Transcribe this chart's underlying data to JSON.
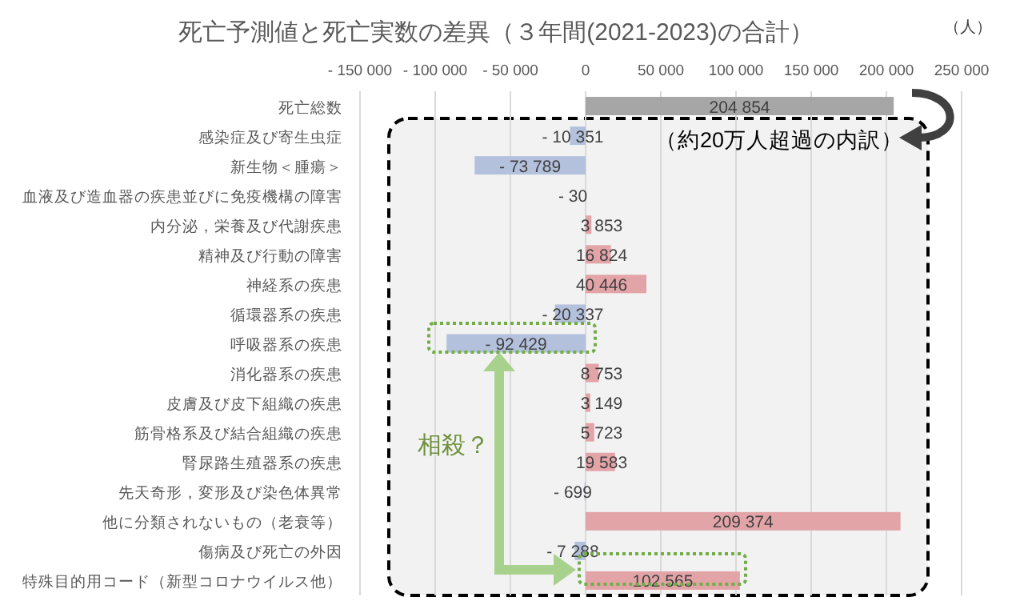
{
  "chart_data": {
    "type": "bar",
    "orientation": "horizontal",
    "title": "死亡予測値と死亡実数の差異（３年間(2021-2023)の合計）",
    "categories": [
      "死亡総数",
      "感染症及び寄生虫症",
      "新生物＜腫瘍＞",
      "血液及び造血器の疾患並びに免疫機構の障害",
      "内分泌，栄養及び代謝疾患",
      "精神及び行動の障害",
      "神経系の疾患",
      "循環器系の疾患",
      "呼吸器系の疾患",
      "消化器系の疾患",
      "皮膚及び皮下組織の疾患",
      "筋骨格系及び結合組織の疾患",
      "腎尿路生殖器系の疾患",
      "先天奇形，変形及び染色体異常",
      "他に分類されないもの（老衰等）",
      "傷病及び死亡の外因",
      "特殊目的用コード（新型コロナウイルス他）"
    ],
    "values": [
      204854,
      -10351,
      -73789,
      -30,
      3853,
      16824,
      40446,
      -20337,
      -92429,
      8753,
      3149,
      5723,
      19583,
      -699,
      209374,
      -7288,
      102565
    ],
    "value_labels": [
      "204 854",
      "- 10 351",
      "- 73 789",
      "-  30",
      "3 853",
      "16 824",
      "40 446",
      "- 20 337",
      "- 92 429",
      "8 753",
      "3 149",
      "5 723",
      "19 583",
      "-  699",
      "209 374",
      "- 7 288",
      "102 565"
    ],
    "colors": [
      "#a6a6a6",
      "#b4c1dd",
      "#b4c1dd",
      "#b4c1dd",
      "#e3a4a8",
      "#e3a4a8",
      "#e3a4a8",
      "#b4c1dd",
      "#b4c1dd",
      "#e3a4a8",
      "#e3a4a8",
      "#e3a4a8",
      "#e3a4a8",
      "#b4c1dd",
      "#e3a4a8",
      "#b4c1dd",
      "#e3a4a8"
    ],
    "xlim": [
      -150000,
      250000
    ],
    "xticks": [
      {
        "value": -150000,
        "label": "- 150 000"
      },
      {
        "value": -100000,
        "label": "- 100 000"
      },
      {
        "value": -50000,
        "label": "- 50 000"
      },
      0,
      {
        "value": 50000,
        "label": "50 000"
      },
      {
        "value": 100000,
        "label": "100 000"
      },
      {
        "value": 150000,
        "label": "150 000"
      },
      {
        "value": 200000,
        "label": "200 000"
      },
      {
        "value": 250000,
        "label": "250 000"
      }
    ],
    "grid": "x",
    "annotations": [
      "（人）",
      "（約20万人超過の内訳）",
      "相殺？"
    ]
  }
}
